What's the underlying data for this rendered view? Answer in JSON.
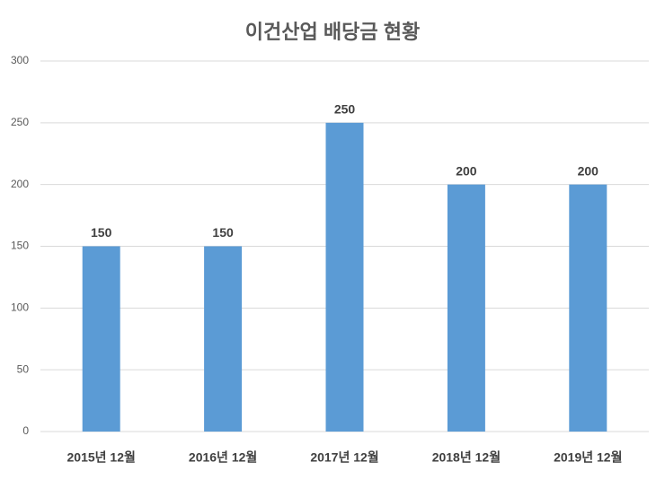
{
  "chart_data": {
    "type": "bar",
    "title": "이건산업 배당금 현황",
    "categories": [
      "2015년 12월",
      "2016년 12월",
      "2017년 12월",
      "2018년 12월",
      "2019년 12월"
    ],
    "values": [
      150,
      150,
      250,
      200,
      200
    ],
    "color": "#5b9bd5",
    "ylim": [
      0,
      300
    ],
    "yticks": [
      0,
      50,
      100,
      150,
      200,
      250,
      300
    ],
    "grid": true,
    "data_labels": true
  }
}
